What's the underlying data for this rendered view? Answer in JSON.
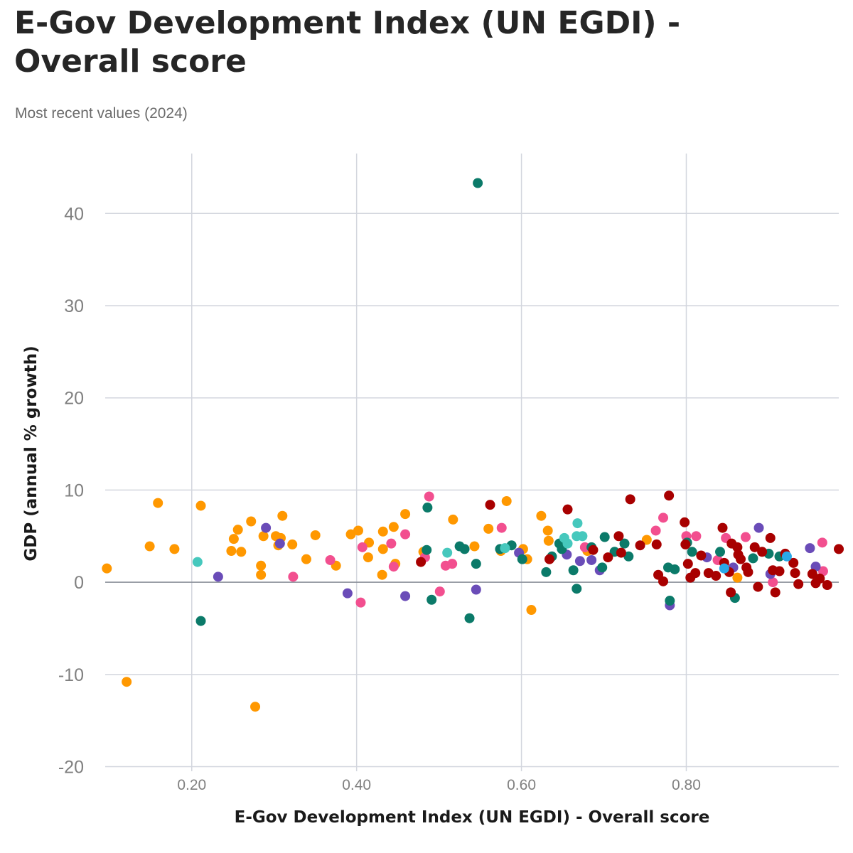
{
  "page": {
    "title": "E-Gov Development Index (UN EGDI) - Overall score",
    "subtitle": "Most recent values (2024)"
  },
  "colors": {
    "orange": "#ff9800",
    "pink": "#f24f8f",
    "purple": "#6a4cb8",
    "teal": "#0b7a69",
    "turquoise": "#46c8bd",
    "darkred": "#a80000",
    "blue": "#2aa8e8",
    "grid": "#d3d6de",
    "zero": "#8a8f99"
  },
  "chart_data": {
    "type": "scatter",
    "title": "E-Gov Development Index (UN EGDI) - Overall score",
    "subtitle": "Most recent values (2024)",
    "xlabel": "E-Gov Development Index (UN EGDI) - Overall score",
    "ylabel": "GDP (annual % growth)",
    "xlim": [
      0.095,
      0.985
    ],
    "ylim": [
      -20.5,
      46.5
    ],
    "xticks": [
      0.2,
      0.4,
      0.6,
      0.8
    ],
    "xtick_labels": [
      "0.20",
      "0.40",
      "0.60",
      "0.80"
    ],
    "yticks": [
      40,
      30,
      20,
      10,
      0,
      -10,
      -20
    ],
    "ytick_labels": [
      "40",
      "30",
      "20",
      "10",
      "0",
      "-10",
      "-20"
    ],
    "grid": true,
    "legend": "none",
    "series": [
      {
        "color": "orange",
        "points": [
          [
            0.097,
            1.5
          ],
          [
            0.121,
            -10.8
          ],
          [
            0.149,
            3.9
          ],
          [
            0.159,
            8.6
          ],
          [
            0.179,
            3.6
          ],
          [
            0.211,
            8.3
          ],
          [
            0.248,
            3.4
          ],
          [
            0.251,
            4.7
          ],
          [
            0.256,
            5.7
          ],
          [
            0.26,
            3.3
          ],
          [
            0.272,
            6.6
          ],
          [
            0.277,
            -13.5
          ],
          [
            0.284,
            1.8
          ],
          [
            0.284,
            0.8
          ],
          [
            0.287,
            5.0
          ],
          [
            0.302,
            5.0
          ],
          [
            0.305,
            4.0
          ],
          [
            0.308,
            4.8
          ],
          [
            0.31,
            7.2
          ],
          [
            0.322,
            4.1
          ],
          [
            0.339,
            2.5
          ],
          [
            0.35,
            5.1
          ],
          [
            0.375,
            1.8
          ],
          [
            0.393,
            5.2
          ],
          [
            0.402,
            5.6
          ],
          [
            0.414,
            2.7
          ],
          [
            0.415,
            4.3
          ],
          [
            0.431,
            0.8
          ],
          [
            0.432,
            5.5
          ],
          [
            0.432,
            3.6
          ],
          [
            0.445,
            6.0
          ],
          [
            0.447,
            2.0
          ],
          [
            0.459,
            7.4
          ],
          [
            0.481,
            3.3
          ],
          [
            0.517,
            6.8
          ],
          [
            0.543,
            3.9
          ],
          [
            0.56,
            5.8
          ],
          [
            0.575,
            3.4
          ],
          [
            0.582,
            8.8
          ],
          [
            0.602,
            3.6
          ],
          [
            0.607,
            2.5
          ],
          [
            0.612,
            -3.0
          ],
          [
            0.624,
            7.2
          ],
          [
            0.632,
            5.6
          ],
          [
            0.633,
            4.5
          ],
          [
            0.68,
            3.4
          ],
          [
            0.752,
            4.6
          ],
          [
            0.862,
            0.5
          ]
        ]
      },
      {
        "color": "pink",
        "points": [
          [
            0.368,
            2.4
          ],
          [
            0.405,
            -2.2
          ],
          [
            0.407,
            3.8
          ],
          [
            0.442,
            4.2
          ],
          [
            0.445,
            1.7
          ],
          [
            0.459,
            5.2
          ],
          [
            0.483,
            2.7
          ],
          [
            0.488,
            9.3
          ],
          [
            0.501,
            -1.0
          ],
          [
            0.508,
            1.8
          ],
          [
            0.516,
            2.0
          ],
          [
            0.576,
            5.9
          ],
          [
            0.677,
            3.8
          ],
          [
            0.763,
            5.6
          ],
          [
            0.772,
            7.0
          ],
          [
            0.8,
            5.0
          ],
          [
            0.812,
            5.0
          ],
          [
            0.838,
            2.4
          ],
          [
            0.848,
            4.8
          ],
          [
            0.872,
            4.9
          ],
          [
            0.905,
            0.0
          ],
          [
            0.965,
            4.3
          ],
          [
            0.966,
            1.2
          ],
          [
            0.323,
            0.6
          ]
        ]
      },
      {
        "color": "purple",
        "points": [
          [
            0.232,
            0.6
          ],
          [
            0.29,
            5.9
          ],
          [
            0.307,
            4.2
          ],
          [
            0.389,
            -1.2
          ],
          [
            0.459,
            -1.5
          ],
          [
            0.545,
            -0.8
          ],
          [
            0.597,
            3.2
          ],
          [
            0.655,
            3.0
          ],
          [
            0.671,
            2.3
          ],
          [
            0.685,
            2.4
          ],
          [
            0.695,
            1.3
          ],
          [
            0.78,
            -2.5
          ],
          [
            0.825,
            2.7
          ],
          [
            0.857,
            1.6
          ],
          [
            0.888,
            5.9
          ],
          [
            0.902,
            0.9
          ],
          [
            0.95,
            3.7
          ],
          [
            0.957,
            1.7
          ]
        ]
      },
      {
        "color": "teal",
        "points": [
          [
            0.211,
            -4.2
          ],
          [
            0.485,
            3.5
          ],
          [
            0.486,
            8.1
          ],
          [
            0.491,
            -1.9
          ],
          [
            0.525,
            3.9
          ],
          [
            0.531,
            3.6
          ],
          [
            0.537,
            -3.9
          ],
          [
            0.545,
            2.0
          ],
          [
            0.547,
            43.3
          ],
          [
            0.574,
            3.6
          ],
          [
            0.588,
            4.0
          ],
          [
            0.601,
            2.5
          ],
          [
            0.63,
            1.1
          ],
          [
            0.637,
            2.8
          ],
          [
            0.646,
            4.2
          ],
          [
            0.649,
            3.6
          ],
          [
            0.663,
            1.3
          ],
          [
            0.667,
            -0.7
          ],
          [
            0.685,
            3.8
          ],
          [
            0.698,
            1.6
          ],
          [
            0.701,
            4.9
          ],
          [
            0.713,
            3.3
          ],
          [
            0.725,
            4.2
          ],
          [
            0.73,
            2.8
          ],
          [
            0.778,
            1.6
          ],
          [
            0.78,
            -2.0
          ],
          [
            0.786,
            1.4
          ],
          [
            0.801,
            4.3
          ],
          [
            0.807,
            3.3
          ],
          [
            0.841,
            3.3
          ],
          [
            0.859,
            -1.7
          ],
          [
            0.881,
            2.6
          ],
          [
            0.9,
            3.1
          ],
          [
            0.913,
            2.8
          ]
        ]
      },
      {
        "color": "turquoise",
        "points": [
          [
            0.207,
            2.2
          ],
          [
            0.51,
            3.2
          ],
          [
            0.58,
            3.7
          ],
          [
            0.652,
            4.8
          ],
          [
            0.656,
            4.2
          ],
          [
            0.667,
            5.0
          ],
          [
            0.668,
            6.4
          ],
          [
            0.674,
            5.0
          ]
        ]
      },
      {
        "color": "darkred",
        "points": [
          [
            0.478,
            2.2
          ],
          [
            0.562,
            8.4
          ],
          [
            0.634,
            2.5
          ],
          [
            0.656,
            7.9
          ],
          [
            0.687,
            3.5
          ],
          [
            0.705,
            2.7
          ],
          [
            0.718,
            5.0
          ],
          [
            0.721,
            3.2
          ],
          [
            0.732,
            9.0
          ],
          [
            0.744,
            4.0
          ],
          [
            0.764,
            4.1
          ],
          [
            0.766,
            0.8
          ],
          [
            0.772,
            0.1
          ],
          [
            0.779,
            9.4
          ],
          [
            0.798,
            6.5
          ],
          [
            0.799,
            4.1
          ],
          [
            0.802,
            2.0
          ],
          [
            0.805,
            0.5
          ],
          [
            0.811,
            1.0
          ],
          [
            0.818,
            2.9
          ],
          [
            0.827,
            1.0
          ],
          [
            0.836,
            0.7
          ],
          [
            0.844,
            5.9
          ],
          [
            0.846,
            2.1
          ],
          [
            0.852,
            1.1
          ],
          [
            0.854,
            -1.1
          ],
          [
            0.855,
            4.2
          ],
          [
            0.862,
            3.8
          ],
          [
            0.863,
            3.0
          ],
          [
            0.866,
            2.5
          ],
          [
            0.873,
            1.6
          ],
          [
            0.875,
            1.1
          ],
          [
            0.883,
            3.8
          ],
          [
            0.887,
            -0.5
          ],
          [
            0.892,
            3.3
          ],
          [
            0.902,
            4.8
          ],
          [
            0.905,
            1.3
          ],
          [
            0.908,
            -1.1
          ],
          [
            0.913,
            1.2
          ],
          [
            0.92,
            3.1
          ],
          [
            0.93,
            2.1
          ],
          [
            0.932,
            1.0
          ],
          [
            0.936,
            -0.2
          ],
          [
            0.953,
            0.9
          ],
          [
            0.957,
            -0.1
          ],
          [
            0.962,
            0.4
          ],
          [
            0.971,
            -0.3
          ],
          [
            0.985,
            3.6
          ]
        ]
      },
      {
        "color": "blue",
        "points": [
          [
            0.846,
            1.5
          ],
          [
            0.922,
            2.8
          ]
        ]
      }
    ]
  }
}
